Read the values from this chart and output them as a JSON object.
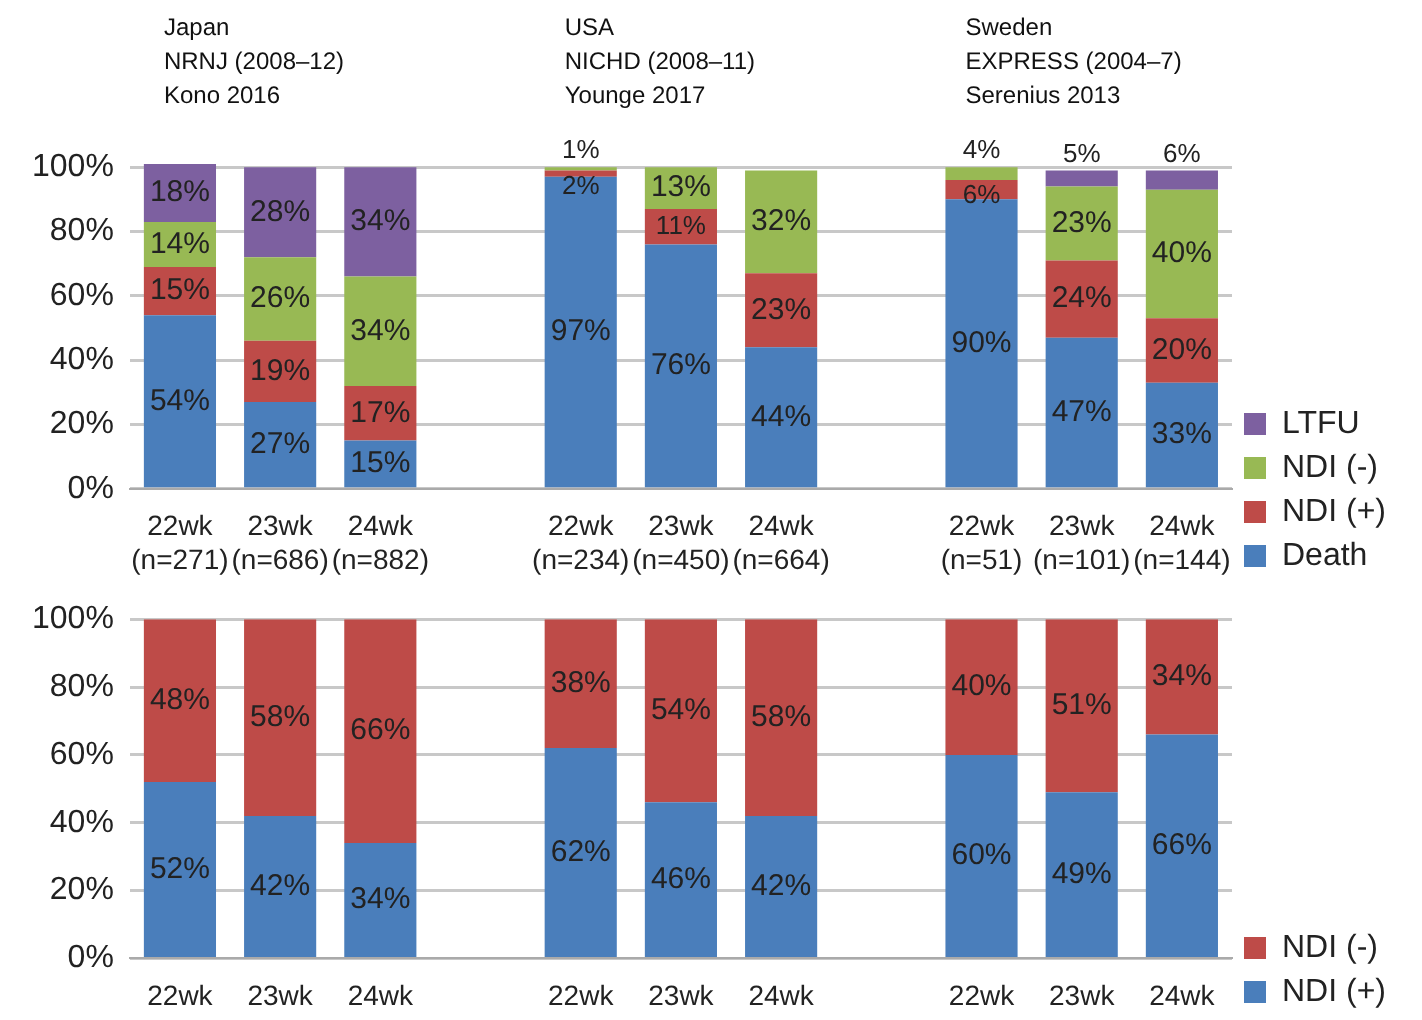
{
  "chart_data": [
    {
      "type": "bar",
      "stacked": true,
      "annotations": [
        "Japan\nNRNJ (2008–12)\nKono 2016",
        "USA\nNICHD (2008–11)\nYounge 2017",
        "Sweden\nEXPRESS (2004–7)\nSerenius 2013"
      ],
      "categories": [
        "22wk\n(n=271)",
        "23wk\n(n=686)",
        "24wk\n(n=882)",
        null,
        "22wk\n(n=234)",
        "23wk\n(n=450)",
        "24wk\n(n=664)",
        null,
        "22wk\n(n=51)",
        "23wk\n(n=101)",
        "24wk\n(n=144)"
      ],
      "series": [
        {
          "name": "Death",
          "color": "#4a7ebb",
          "values": [
            54,
            27,
            15,
            null,
            97,
            76,
            44,
            null,
            90,
            47,
            33
          ],
          "value_labels": [
            "54%",
            "27%",
            "15%",
            null,
            "97%",
            "76%",
            "44%",
            null,
            "90%",
            "47%",
            "33%"
          ]
        },
        {
          "name": "NDI (+)",
          "color": "#be4b48",
          "values": [
            15,
            19,
            17,
            null,
            2,
            11,
            23,
            null,
            6,
            24,
            20
          ],
          "value_labels": [
            "15%",
            "19%",
            "17%",
            null,
            "2%",
            "11%",
            "23%",
            null,
            "6%",
            "24%",
            "20%"
          ]
        },
        {
          "name": "NDI (-)",
          "color": "#98b954",
          "values": [
            14,
            26,
            34,
            null,
            1,
            13,
            32,
            null,
            4,
            23,
            40
          ],
          "value_labels": [
            "14%",
            "26%",
            "34%",
            null,
            "1%",
            "13%",
            "32%",
            null,
            "4%",
            "23%",
            "40%"
          ]
        },
        {
          "name": "LTFU",
          "color": "#7d60a0",
          "values": [
            18,
            28,
            34,
            null,
            null,
            null,
            null,
            null,
            null,
            5,
            6
          ],
          "value_labels": [
            "18%",
            "28%",
            "34%",
            null,
            null,
            null,
            null,
            null,
            null,
            "5%",
            "6%"
          ]
        }
      ],
      "ylim": [
        0,
        101
      ],
      "yticks": [
        {
          "value": 0,
          "label": "0%"
        },
        {
          "value": 20,
          "label": "20%"
        },
        {
          "value": 40,
          "label": "40%"
        },
        {
          "value": 60,
          "label": "60%"
        },
        {
          "value": 80,
          "label": "80%"
        },
        {
          "value": 100,
          "label": "100%"
        }
      ],
      "grid": "y",
      "legend": "right"
    },
    {
      "type": "bar",
      "stacked": true,
      "categories": [
        "22wk",
        "23wk",
        "24wk",
        null,
        "22wk",
        "23wk",
        "24wk",
        null,
        "22wk",
        "23wk",
        "24wk"
      ],
      "series": [
        {
          "name": "NDI (+)",
          "color": "#4a7ebb",
          "values": [
            52,
            42,
            34,
            null,
            62,
            46,
            42,
            null,
            60,
            49,
            66
          ],
          "value_labels": [
            "52%",
            "42%",
            "34%",
            null,
            "62%",
            "46%",
            "42%",
            null,
            "60%",
            "49%",
            "66%"
          ]
        },
        {
          "name": "NDI (-)",
          "color": "#be4b48",
          "values": [
            48,
            58,
            66,
            null,
            38,
            54,
            58,
            null,
            40,
            51,
            34
          ],
          "value_labels": [
            "48%",
            "58%",
            "66%",
            null,
            "38%",
            "54%",
            "58%",
            null,
            "40%",
            "51%",
            "34%"
          ]
        }
      ],
      "ylim": [
        0,
        100
      ],
      "yticks": [
        {
          "value": 0,
          "label": "0%"
        },
        {
          "value": 20,
          "label": "20%"
        },
        {
          "value": 40,
          "label": "40%"
        },
        {
          "value": 60,
          "label": "60%"
        },
        {
          "value": 80,
          "label": "80%"
        },
        {
          "value": 100,
          "label": "100%"
        }
      ],
      "grid": "y",
      "legend": "right"
    }
  ]
}
